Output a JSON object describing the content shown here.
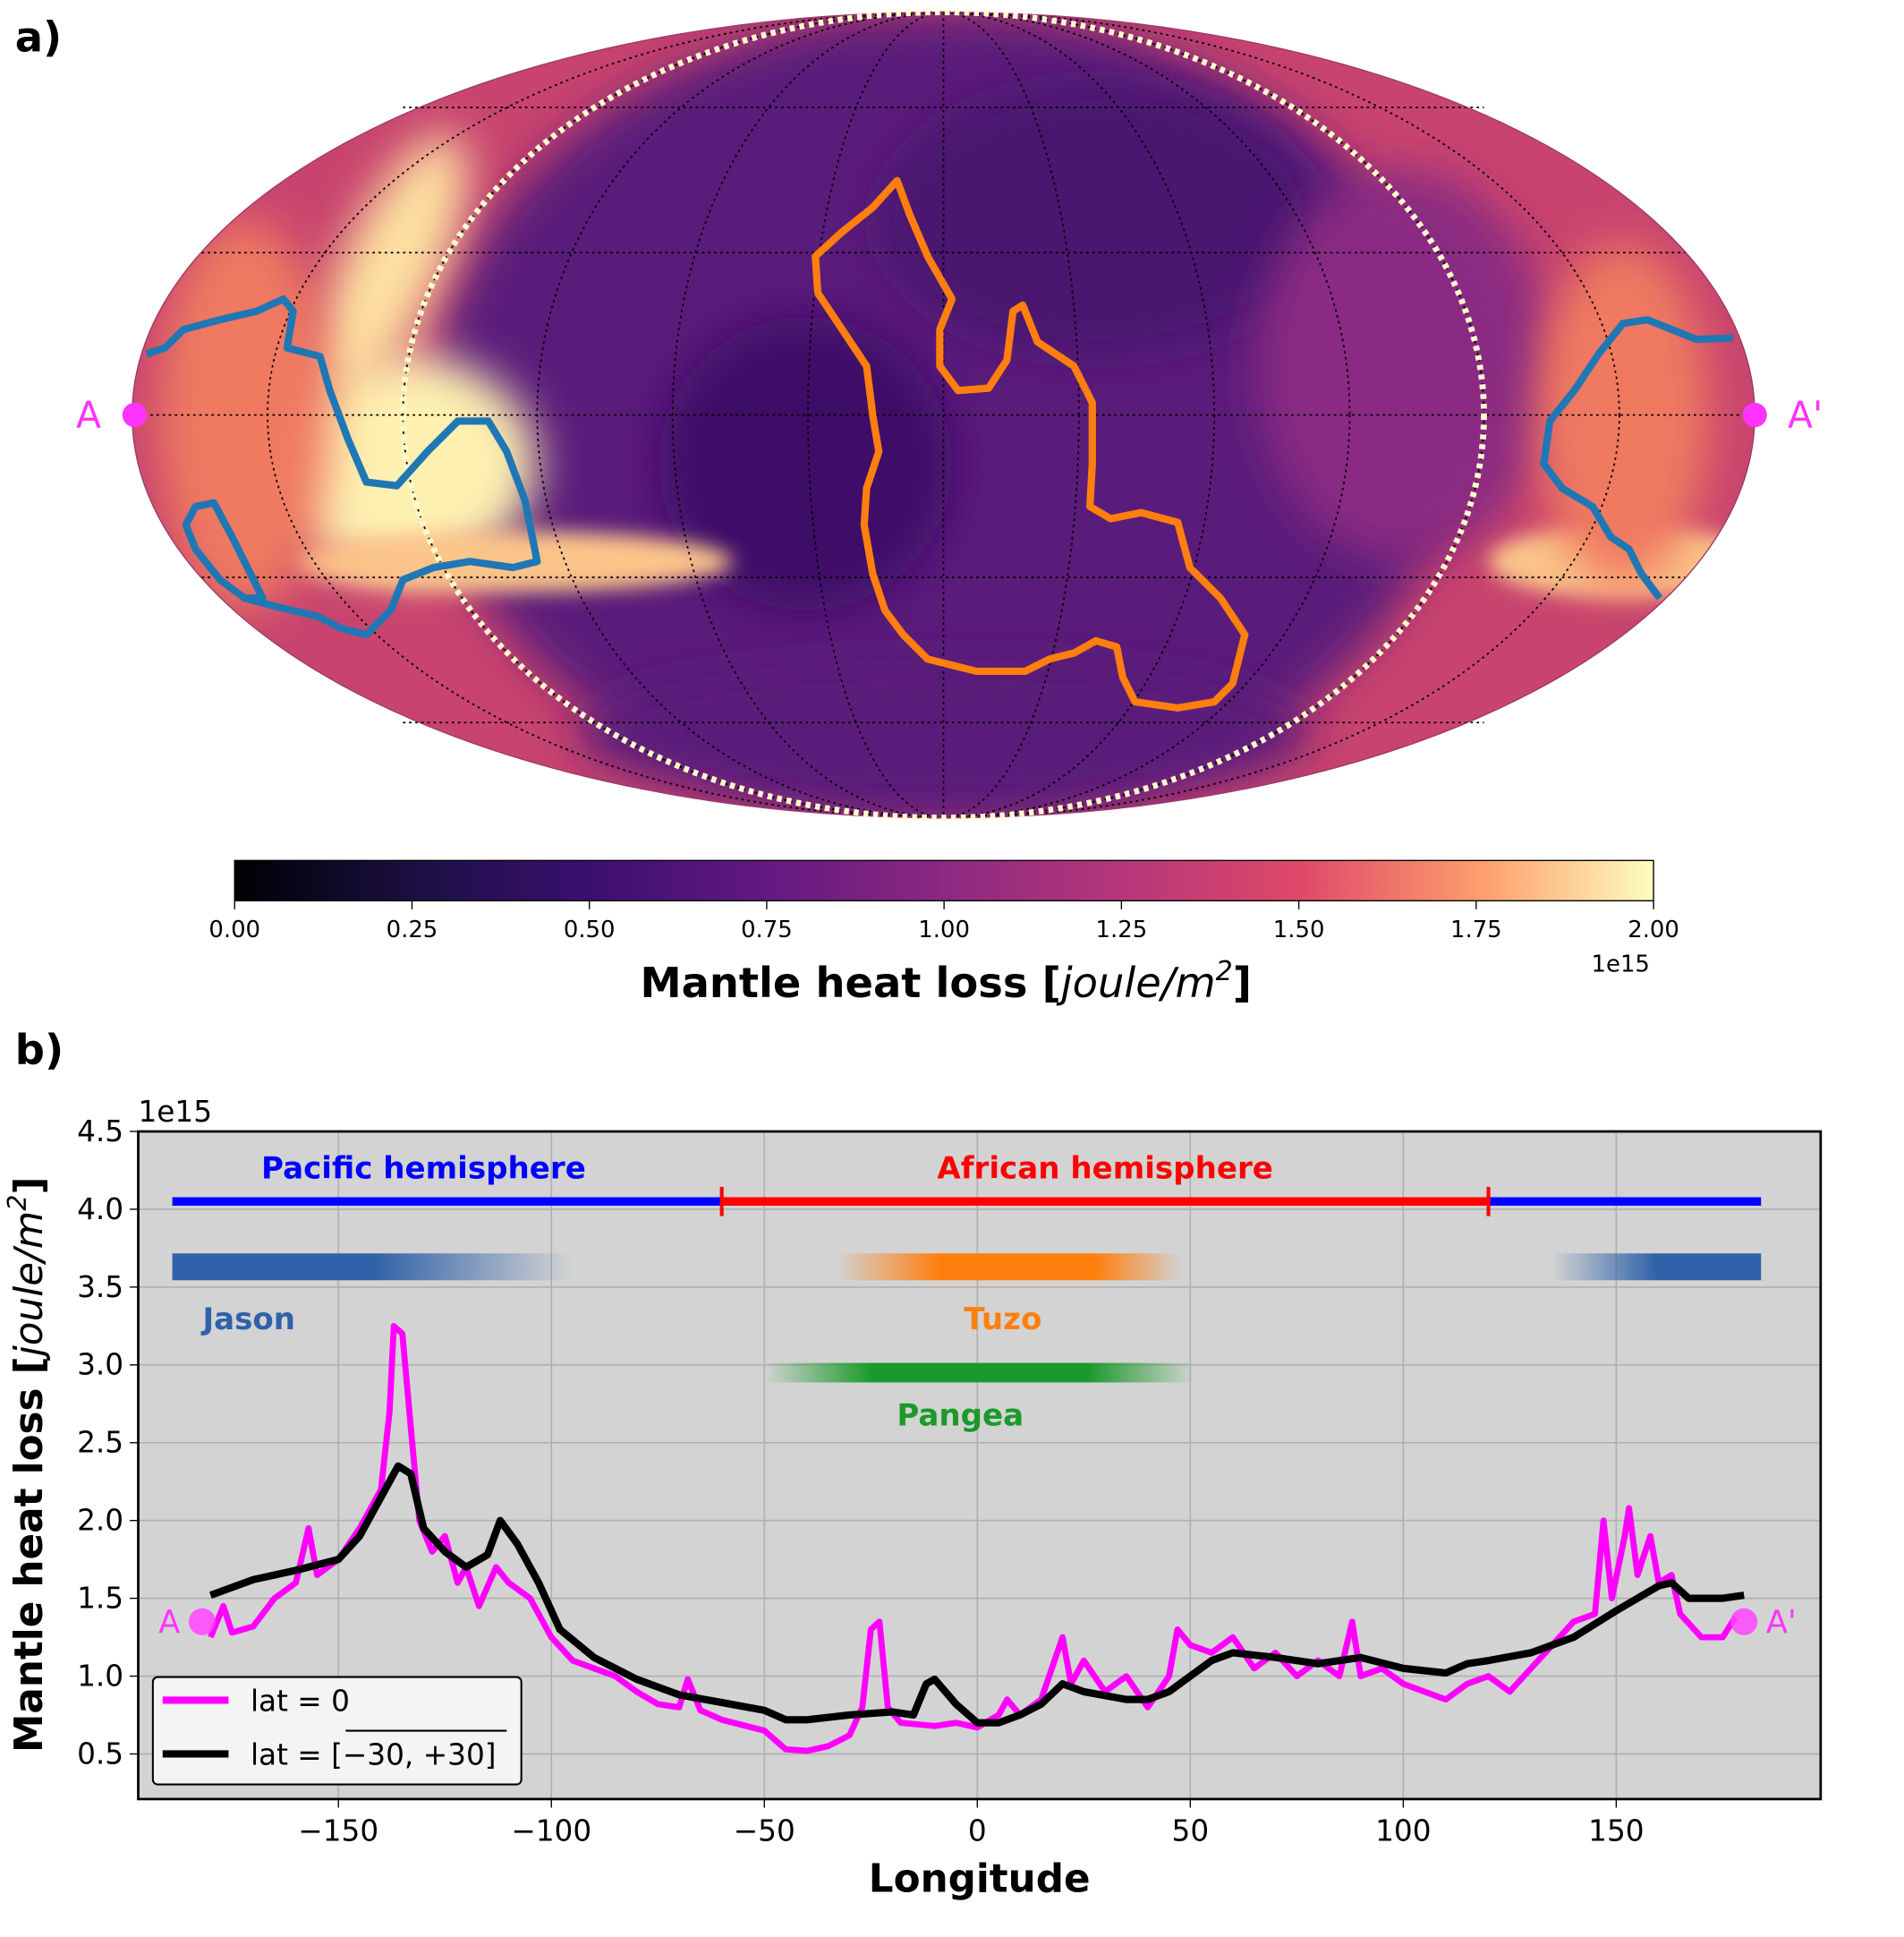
{
  "panel_a": {
    "label": "a)",
    "marker_a": "A",
    "marker_a_prime": "A'",
    "colorbar": {
      "ticks": [
        "0.00",
        "0.25",
        "0.50",
        "0.75",
        "1.00",
        "1.25",
        "1.50",
        "1.75",
        "2.00"
      ],
      "range": [
        0,
        2.0
      ],
      "offset": "1e15",
      "label": "Mantle heat loss [joule/m²]",
      "label_plain": "Mantle heat loss [",
      "label_italic": "joule/m",
      "label_sup": "2",
      "label_close": "]",
      "colormap": "magma"
    },
    "colors": {
      "jason_outline": "#1f77b4",
      "tuzo_outline": "#ff7f0e",
      "hemisphere_boundary": "#fffacd",
      "marker": "#ff33ff"
    }
  },
  "chart_data": {
    "type": "line",
    "panel_label": "b)",
    "xlabel": "Longitude",
    "ylabel_plain": "Mantle heat loss [",
    "ylabel_italic": "joule/m",
    "ylabel_sup": "2",
    "ylabel_close": "]",
    "y_offset": "1e15",
    "xlim": [
      -197,
      198
    ],
    "ylim": [
      0.21,
      4.5
    ],
    "xticks": [
      -150,
      -100,
      -50,
      0,
      50,
      100,
      150
    ],
    "xtick_labels": [
      "−150",
      "−100",
      "−50",
      "0",
      "50",
      "100",
      "150"
    ],
    "yticks": [
      0.5,
      1.0,
      1.5,
      2.0,
      2.5,
      3.0,
      3.5,
      4.0,
      4.5
    ],
    "ytick_labels": [
      "0.5",
      "1.0",
      "1.5",
      "2.0",
      "2.5",
      "3.0",
      "3.5",
      "4.0",
      "4.5"
    ],
    "grid": true,
    "background": "#d3d3d3",
    "legend": {
      "placement": "lower-left",
      "entries": [
        "lat = 0",
        "lat = [−30, +30]"
      ]
    },
    "series": [
      {
        "name": "lat = 0",
        "color": "#ff00ff",
        "x": [
          -180,
          -177,
          -175,
          -170,
          -165,
          -160,
          -157,
          -155,
          -150,
          -145,
          -140,
          -138,
          -137,
          -135,
          -133,
          -131,
          -128,
          -125,
          -122,
          -120,
          -117,
          -113,
          -110,
          -105,
          -100,
          -95,
          -90,
          -85,
          -80,
          -75,
          -70,
          -68,
          -65,
          -60,
          -50,
          -45,
          -40,
          -35,
          -30,
          -27,
          -25,
          -23,
          -21,
          -18,
          -10,
          -5,
          0,
          5,
          7,
          10,
          15,
          20,
          22,
          25,
          30,
          35,
          40,
          45,
          47,
          50,
          55,
          60,
          65,
          70,
          75,
          80,
          85,
          88,
          90,
          95,
          100,
          105,
          110,
          115,
          120,
          125,
          130,
          135,
          140,
          145,
          147,
          149,
          152,
          153,
          155,
          158,
          160,
          163,
          165,
          170,
          175,
          178
        ],
        "y": [
          1.25,
          1.45,
          1.28,
          1.32,
          1.5,
          1.6,
          1.95,
          1.65,
          1.75,
          1.95,
          2.2,
          2.7,
          3.25,
          3.2,
          2.6,
          2.0,
          1.8,
          1.9,
          1.6,
          1.7,
          1.45,
          1.7,
          1.6,
          1.5,
          1.25,
          1.1,
          1.05,
          1.0,
          0.9,
          0.82,
          0.8,
          0.98,
          0.78,
          0.72,
          0.65,
          0.53,
          0.52,
          0.55,
          0.62,
          0.8,
          1.3,
          1.35,
          0.8,
          0.7,
          0.68,
          0.7,
          0.67,
          0.75,
          0.85,
          0.75,
          0.85,
          1.25,
          0.95,
          1.1,
          0.9,
          1.0,
          0.8,
          1.0,
          1.3,
          1.2,
          1.15,
          1.25,
          1.05,
          1.15,
          1.0,
          1.1,
          1.0,
          1.35,
          1.0,
          1.05,
          0.95,
          0.9,
          0.85,
          0.95,
          1.0,
          0.9,
          1.05,
          1.2,
          1.35,
          1.4,
          2.0,
          1.5,
          1.9,
          2.08,
          1.65,
          1.9,
          1.6,
          1.65,
          1.4,
          1.25,
          1.25,
          1.38
        ]
      },
      {
        "name": "lat = [−30, +30]",
        "color": "#000000",
        "x": [
          -180,
          -170,
          -160,
          -150,
          -145,
          -140,
          -136,
          -133,
          -130,
          -125,
          -120,
          -115,
          -112,
          -108,
          -103,
          -98,
          -90,
          -80,
          -70,
          -60,
          -50,
          -45,
          -40,
          -30,
          -20,
          -15,
          -12,
          -10,
          -5,
          0,
          5,
          10,
          15,
          20,
          25,
          35,
          40,
          45,
          50,
          55,
          60,
          70,
          80,
          90,
          100,
          110,
          115,
          120,
          130,
          140,
          150,
          160,
          163,
          167,
          175,
          180
        ],
        "y": [
          1.52,
          1.62,
          1.68,
          1.75,
          1.9,
          2.15,
          2.35,
          2.3,
          1.95,
          1.8,
          1.7,
          1.78,
          2.0,
          1.85,
          1.6,
          1.3,
          1.12,
          0.98,
          0.88,
          0.83,
          0.78,
          0.72,
          0.72,
          0.75,
          0.77,
          0.75,
          0.95,
          0.98,
          0.82,
          0.7,
          0.7,
          0.75,
          0.82,
          0.95,
          0.9,
          0.85,
          0.85,
          0.9,
          1.0,
          1.1,
          1.15,
          1.12,
          1.08,
          1.12,
          1.05,
          1.02,
          1.08,
          1.1,
          1.15,
          1.25,
          1.42,
          1.58,
          1.6,
          1.5,
          1.5,
          1.52
        ]
      }
    ],
    "annotations": {
      "hemispheres": [
        {
          "label": "Pacific hemisphere",
          "color": "#0000ff",
          "segments": [
            [
              -189,
              -60
            ],
            [
              120,
              184
            ]
          ],
          "y": 4.05,
          "label_x": -130,
          "label_y": 4.27
        },
        {
          "label": "African hemisphere",
          "color": "#ff0000",
          "segments": [
            [
              -60,
              120
            ]
          ],
          "y": 4.05,
          "label_x": 30,
          "label_y": 4.27
        }
      ],
      "bands": [
        {
          "label": "Jason",
          "color": "#2f62a8",
          "ranges": [
            [
              -189,
              -95
            ],
            [
              135,
              184
            ]
          ],
          "y": 3.63,
          "label_x": -171,
          "label_y": 3.3
        },
        {
          "label": "Tuzo",
          "color": "#ff7f0e",
          "ranges": [
            [
              -33,
              48
            ]
          ],
          "y": 3.63,
          "label_x": 6,
          "label_y": 3.3
        },
        {
          "label": "Pangea",
          "color": "#1a9a2a",
          "ranges": [
            [
              -50,
              51
            ]
          ],
          "y": 2.95,
          "label_x": -4,
          "label_y": 2.68
        }
      ],
      "markers": [
        {
          "label": "A",
          "x": -182,
          "y": 1.35
        },
        {
          "label": "A'",
          "x": 180,
          "y": 1.35
        }
      ]
    }
  }
}
